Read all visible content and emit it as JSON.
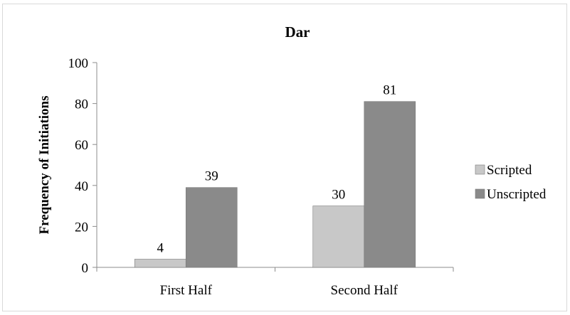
{
  "chart_data": {
    "type": "bar",
    "title": "Dar",
    "xlabel": "",
    "ylabel": "Frequency of Initiations",
    "categories": [
      "First Half",
      "Second Half"
    ],
    "series": [
      {
        "name": "Scripted",
        "values": [
          4,
          30
        ],
        "color": "#c8c8c8"
      },
      {
        "name": "Unscripted",
        "values": [
          39,
          81
        ],
        "color": "#8a8a8a"
      }
    ],
    "ylim": [
      0,
      100
    ],
    "yticks": [
      0,
      20,
      40,
      60,
      80,
      100
    ],
    "grid": false,
    "legend": "right"
  }
}
